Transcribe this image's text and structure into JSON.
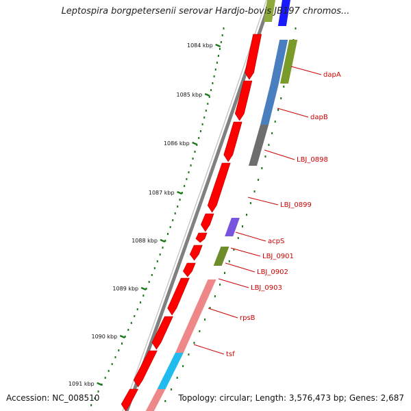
{
  "header": {
    "title": "Leptospira borgpetersenii serovar Hardjo-bovis JB197 chromos..."
  },
  "footer": {
    "accession": "Accession: NC_008510",
    "summary": "Topology: circular; Length: 3,576,473 bp; Genes: 2,687"
  },
  "scale": {
    "ticks": [
      "1084 kbp",
      "1085 kbp",
      "1086 kbp",
      "1087 kbp",
      "1088 kbp",
      "1089 kbp",
      "1090 kbp",
      "1091 kbp"
    ]
  },
  "genes": [
    {
      "label": "dapA"
    },
    {
      "label": "dapB"
    },
    {
      "label": "LBJ_0898"
    },
    {
      "label": "LBJ_0899"
    },
    {
      "label": "acpS"
    },
    {
      "label": "LBJ_0901"
    },
    {
      "label": "LBJ_0902"
    },
    {
      "label": "LBJ_0903"
    },
    {
      "label": "rpsB"
    },
    {
      "label": "tsf"
    }
  ],
  "colors": {
    "backbone": "#808080",
    "cds": "#ff0000",
    "scale_dots": "#1a7a1a",
    "label": "#cc0000"
  }
}
